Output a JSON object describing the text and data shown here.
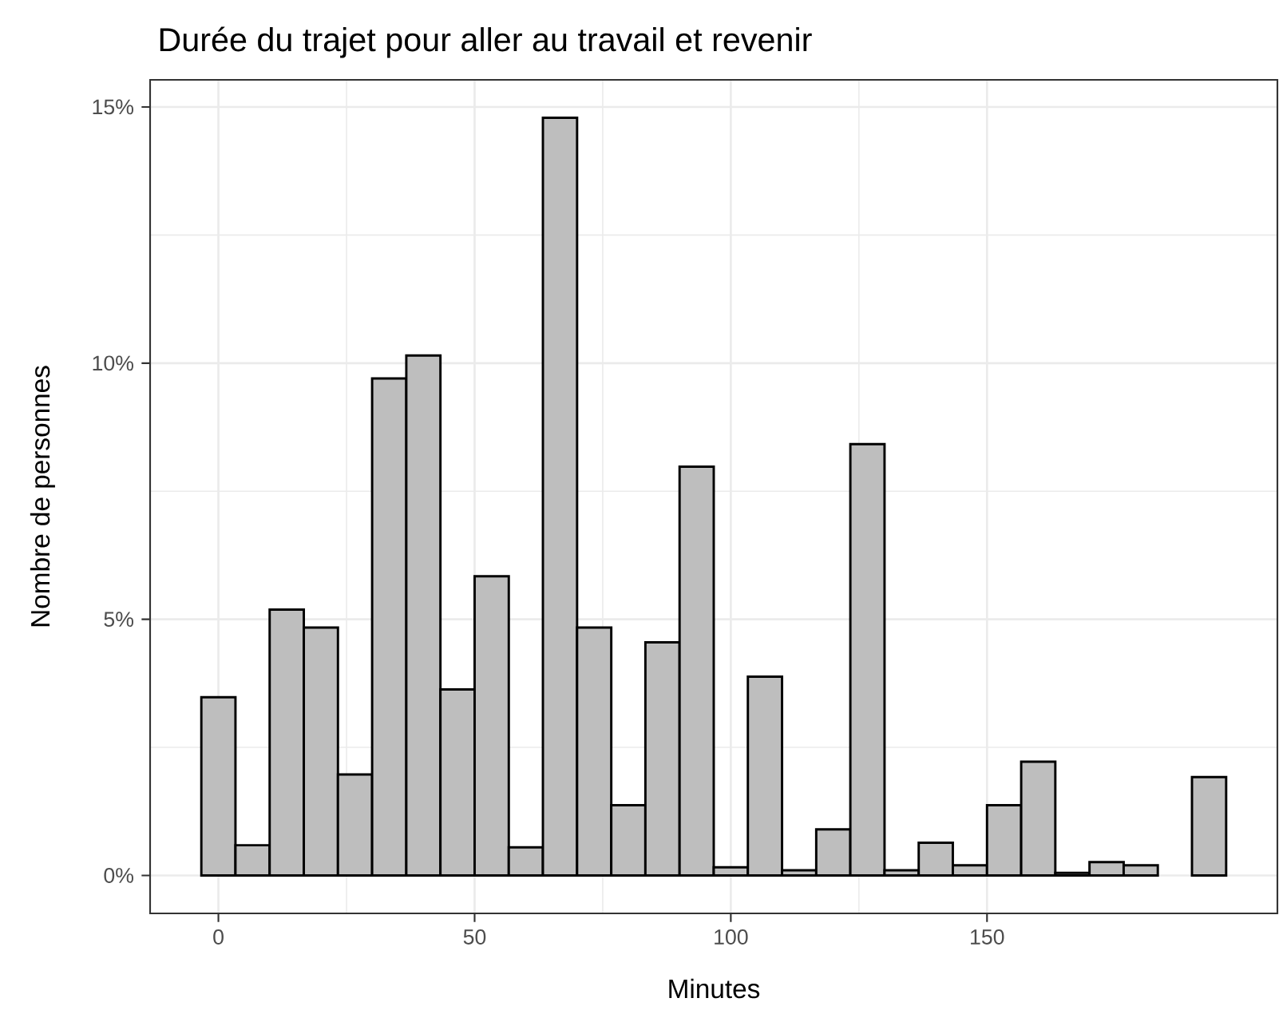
{
  "chart_data": {
    "type": "histogram",
    "title": "Durée du trajet pour aller au travail et revenir",
    "xlabel": "Minutes",
    "ylabel": "Nombre de personnes",
    "bins": [
      -3.33,
      3.33,
      10,
      16.67,
      23.33,
      30,
      36.67,
      43.33,
      50,
      56.67,
      63.33,
      70,
      76.67,
      83.33,
      90,
      96.67,
      103.33,
      110,
      116.67,
      123.33,
      130,
      136.67,
      143.33,
      150,
      156.67,
      163.33,
      170,
      176.67,
      183.33,
      190,
      196.67
    ],
    "values": [
      3.48,
      0.59,
      5.19,
      4.84,
      1.97,
      9.7,
      10.15,
      3.63,
      5.84,
      0.55,
      14.79,
      4.84,
      1.37,
      4.55,
      7.98,
      0.16,
      3.88,
      0.1,
      0.9,
      8.42,
      0.1,
      0.64,
      0.2,
      1.37,
      2.22,
      0.05,
      0.26,
      0.2,
      0,
      1.92
    ],
    "color": "#bebebe",
    "xlim": [
      -13.33,
      206.67
    ],
    "ylim": [
      -0.74,
      15.53
    ],
    "xticks": [
      0,
      50,
      100,
      150
    ],
    "yticks": [
      {
        "value": 0,
        "label": "0%"
      },
      {
        "value": 5,
        "label": "5%"
      },
      {
        "value": 10,
        "label": "10%"
      },
      {
        "value": 15,
        "label": "15%"
      }
    ],
    "grid": true
  }
}
